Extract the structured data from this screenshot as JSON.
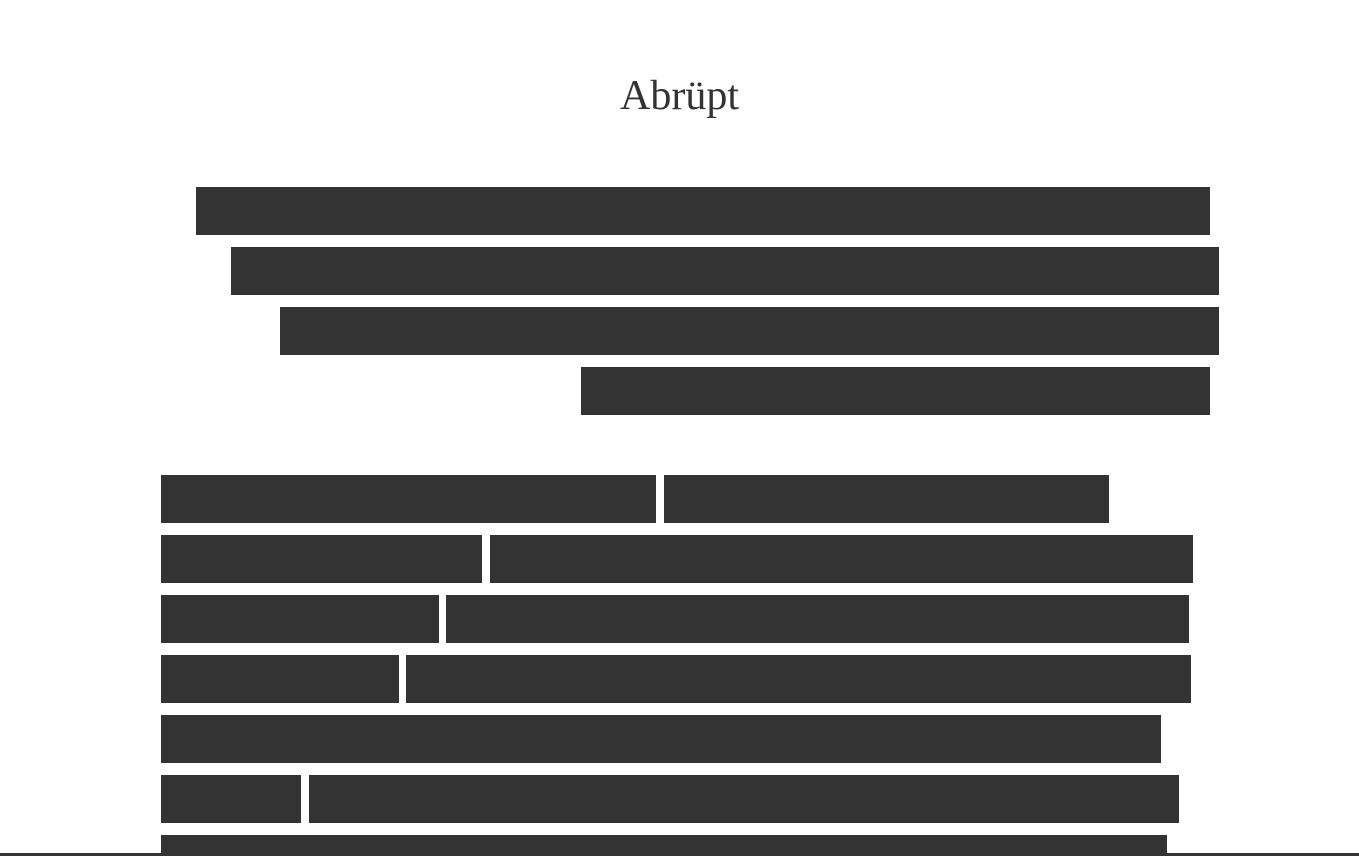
{
  "page": {
    "title": "Abrüpt"
  },
  "colors": {
    "background": "#ffffff",
    "redaction_bar": "#333333",
    "text": "#333333"
  }
}
